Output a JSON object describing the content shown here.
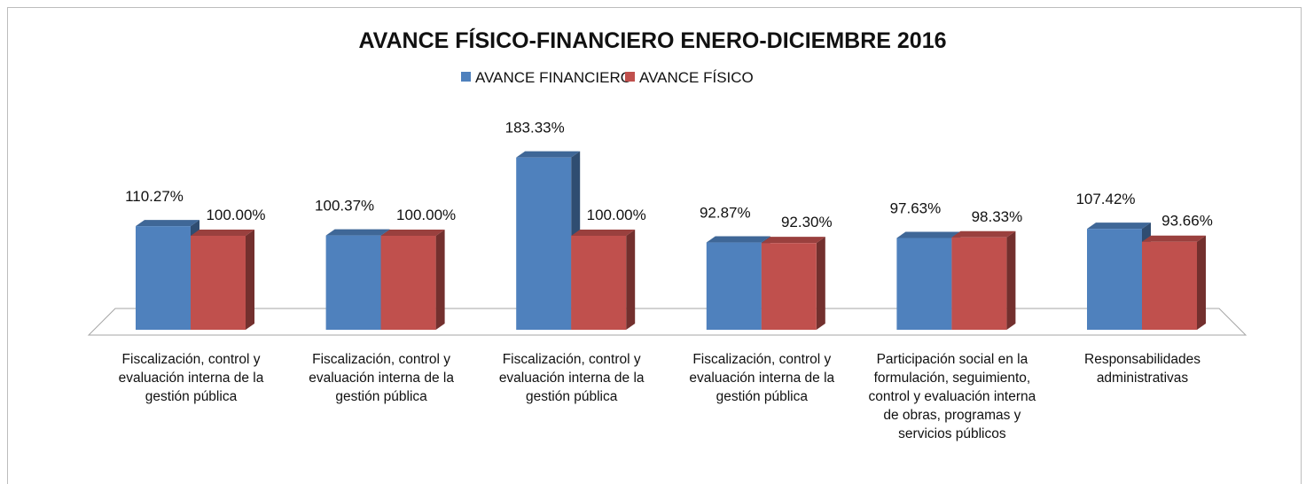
{
  "chart_data": {
    "type": "bar3d",
    "title": "AVANCE FÍSICO-FINANCIERO ENERO-DICIEMBRE  2016",
    "categories": [
      "Fiscalización, control y evaluación interna de la gestión pública",
      "Fiscalización, control y evaluación interna de la gestión pública",
      "Fiscalización, control y evaluación interna de la gestión pública",
      "Fiscalización, control y evaluación interna de la gestión pública",
      "Participación social en la formulación, seguimiento, control y evaluación interna de obras, programas y servicios públicos",
      "Responsabilidades administrativas"
    ],
    "series": [
      {
        "name": "AVANCE FINANCIERO",
        "color": "#4f81bd",
        "values": [
          110.27,
          100.37,
          183.33,
          92.87,
          97.63,
          107.42
        ],
        "value_labels": [
          "110.27%",
          "100.37%",
          "183.33%",
          "92.87%",
          "97.63%",
          "107.42%"
        ]
      },
      {
        "name": "AVANCE FÍSICO",
        "color": "#c0504d",
        "values": [
          100,
          100,
          100,
          92.3,
          98.33,
          93.66
        ],
        "value_labels": [
          "100.00%",
          "100.00%",
          "100.00%",
          "92.30%",
          "98.33%",
          "93.66%"
        ]
      }
    ],
    "legend": "top"
  }
}
